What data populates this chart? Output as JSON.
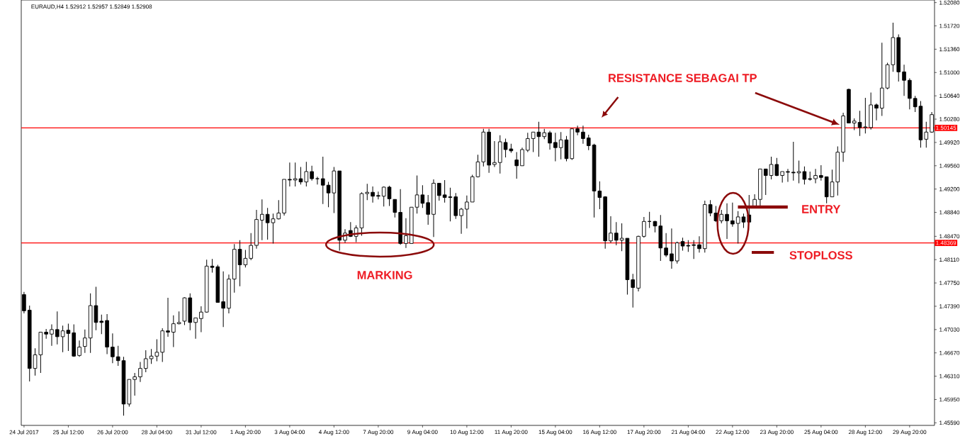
{
  "chart_data": {
    "type": "candlestick",
    "title": "EURAUD,H4 1.52912 1.52957 1.52849 1.52908",
    "annotations": [
      "RESISTANCE SEBAGAI TP",
      "MARKING",
      "ENTRY",
      "STOPLOSS"
    ],
    "categories": [
      "24 Jul 2017",
      null,
      null,
      null,
      null,
      null,
      null,
      null,
      "25 Jul 12:00",
      null,
      null,
      null,
      null,
      null,
      null,
      null,
      "26 Jul 20:00",
      null,
      null,
      null,
      null,
      null,
      null,
      null,
      "28 Jul 04:00",
      null,
      null,
      null,
      null,
      null,
      null,
      null,
      "31 Jul 12:00",
      null,
      null,
      null,
      null,
      null,
      null,
      null,
      "1 Aug 20:00",
      null,
      null,
      null,
      null,
      null,
      null,
      null,
      "3 Aug 04:00",
      null,
      null,
      null,
      null,
      null,
      null,
      null,
      "4 Aug 12:00",
      null,
      null,
      null,
      null,
      null,
      null,
      null,
      "7 Aug 20:00",
      null,
      null,
      null,
      null,
      null,
      null,
      null,
      "9 Aug 04:00",
      null,
      null,
      null,
      null,
      null,
      null,
      null,
      "10 Aug 12:00",
      null,
      null,
      null,
      null,
      null,
      null,
      null,
      "11 Aug 20:00",
      null,
      null,
      null,
      null,
      null,
      null,
      null,
      "15 Aug 04:00",
      null,
      null,
      null,
      null,
      null,
      null,
      null,
      "16 Aug 12:00",
      null,
      null,
      null,
      null,
      null,
      null,
      null,
      "17 Aug 20:00",
      null,
      null,
      null,
      null,
      null,
      null,
      null,
      "21 Aug 04:00",
      null,
      null,
      null,
      null,
      null,
      null,
      null,
      "22 Aug 12:00",
      null,
      null,
      null,
      null,
      null,
      null,
      null,
      "23 Aug 20:00",
      null,
      null,
      null,
      null,
      null,
      null,
      null,
      "25 Aug 04:00",
      null,
      null,
      null,
      null,
      null,
      null,
      null,
      "28 Aug 12:00",
      null,
      null,
      null,
      null,
      null,
      null,
      null,
      "29 Aug 20:00",
      null,
      null,
      null,
      null
    ],
    "ohlc": [
      [
        1.4757,
        1.4761,
        1.4728,
        1.4732
      ],
      [
        1.4733,
        1.474,
        1.4623,
        1.4643
      ],
      [
        1.4643,
        1.4674,
        1.4632,
        1.4664
      ],
      [
        1.4664,
        1.4699,
        1.4636,
        1.4699
      ],
      [
        1.4699,
        1.4704,
        1.4689,
        1.4696
      ],
      [
        1.4696,
        1.4711,
        1.4678,
        1.4703
      ],
      [
        1.4703,
        1.4731,
        1.468,
        1.4692
      ],
      [
        1.4692,
        1.4709,
        1.4668,
        1.4701
      ],
      [
        1.4702,
        1.4712,
        1.467,
        1.4697
      ],
      [
        1.4698,
        1.4711,
        1.4661,
        1.4662
      ],
      [
        1.4663,
        1.4686,
        1.4661,
        1.4676
      ],
      [
        1.4677,
        1.4703,
        1.4667,
        1.469
      ],
      [
        1.469,
        1.4759,
        1.4667,
        1.474
      ],
      [
        1.474,
        1.4769,
        1.4702,
        1.4714
      ],
      [
        1.4716,
        1.4726,
        1.4696,
        1.4714
      ],
      [
        1.4717,
        1.4727,
        1.4665,
        1.4676
      ],
      [
        1.4676,
        1.4697,
        1.4651,
        1.4661
      ],
      [
        1.4661,
        1.4678,
        1.4647,
        1.4655
      ],
      [
        1.4655,
        1.4661,
        1.457,
        1.4588
      ],
      [
        1.4588,
        1.4626,
        1.4584,
        1.4626
      ],
      [
        1.4626,
        1.4636,
        1.4601,
        1.463
      ],
      [
        1.463,
        1.4653,
        1.4622,
        1.4643
      ],
      [
        1.4643,
        1.4671,
        1.4637,
        1.4658
      ],
      [
        1.4658,
        1.4673,
        1.465,
        1.4662
      ],
      [
        1.4662,
        1.4688,
        1.4654,
        1.4668
      ],
      [
        1.4668,
        1.4705,
        1.4653,
        1.4701
      ],
      [
        1.4701,
        1.4752,
        1.4692,
        1.4699
      ],
      [
        1.4699,
        1.4725,
        1.4676,
        1.4712
      ],
      [
        1.4712,
        1.4731,
        1.4711,
        1.4714
      ],
      [
        1.4716,
        1.4753,
        1.471,
        1.4752
      ],
      [
        1.4752,
        1.4759,
        1.4702,
        1.4714
      ],
      [
        1.4714,
        1.4721,
        1.4689,
        1.4721
      ],
      [
        1.472,
        1.4739,
        1.4699,
        1.473
      ],
      [
        1.473,
        1.4811,
        1.4729,
        1.4801
      ],
      [
        1.4801,
        1.4812,
        1.4791,
        1.4799
      ],
      [
        1.48,
        1.4803,
        1.4745,
        1.4745
      ],
      [
        1.4746,
        1.4793,
        1.4707,
        1.4736
      ],
      [
        1.4736,
        1.4788,
        1.4728,
        1.4781
      ],
      [
        1.4781,
        1.4835,
        1.476,
        1.4827
      ],
      [
        1.4827,
        1.4841,
        1.477,
        1.4803
      ],
      [
        1.4803,
        1.4826,
        1.4799,
        1.4813
      ],
      [
        1.4813,
        1.4852,
        1.481,
        1.4833
      ],
      [
        1.4833,
        1.4888,
        1.4828,
        1.4873
      ],
      [
        1.4872,
        1.4904,
        1.4841,
        1.4881
      ],
      [
        1.4881,
        1.4891,
        1.4842,
        1.4868
      ],
      [
        1.4868,
        1.4882,
        1.4836,
        1.4874
      ],
      [
        1.4874,
        1.4903,
        1.4873,
        1.4883
      ],
      [
        1.4883,
        1.4935,
        1.4879,
        1.4935
      ],
      [
        1.4935,
        1.4961,
        1.4924,
        1.4934
      ],
      [
        1.4934,
        1.4961,
        1.4924,
        1.4936
      ],
      [
        1.4936,
        1.4954,
        1.4927,
        1.4931
      ],
      [
        1.4931,
        1.4962,
        1.4924,
        1.4947
      ],
      [
        1.4947,
        1.4956,
        1.4933,
        1.4936
      ],
      [
        1.4936,
        1.4939,
        1.4927,
        1.4936
      ],
      [
        1.4936,
        1.497,
        1.4897,
        1.4926
      ],
      [
        1.4926,
        1.4931,
        1.4892,
        1.4914
      ],
      [
        1.4914,
        1.4954,
        1.4883,
        1.4948
      ],
      [
        1.4948,
        1.4948,
        1.4825,
        1.4841
      ],
      [
        1.4841,
        1.4858,
        1.4837,
        1.4852
      ],
      [
        1.4856,
        1.4869,
        1.4846,
        1.4847
      ],
      [
        1.4847,
        1.4864,
        1.4838,
        1.486
      ],
      [
        1.486,
        1.4915,
        1.4848,
        1.4913
      ],
      [
        1.4913,
        1.4928,
        1.4903,
        1.4915
      ],
      [
        1.4915,
        1.4924,
        1.4899,
        1.4909
      ],
      [
        1.491,
        1.4916,
        1.4904,
        1.4909
      ],
      [
        1.4909,
        1.4924,
        1.4893,
        1.4923
      ],
      [
        1.4923,
        1.4925,
        1.4894,
        1.4905
      ],
      [
        1.4904,
        1.4904,
        1.4876,
        1.4884
      ],
      [
        1.4884,
        1.492,
        1.4834,
        1.4836
      ],
      [
        1.4836,
        1.4875,
        1.4829,
        1.4848
      ],
      [
        1.4836,
        1.4892,
        1.4836,
        1.4892
      ],
      [
        1.4892,
        1.4941,
        1.4882,
        1.4911
      ],
      [
        1.4911,
        1.4926,
        1.4891,
        1.4898
      ],
      [
        1.4899,
        1.4911,
        1.4865,
        1.4881
      ],
      [
        1.4881,
        1.4935,
        1.4846,
        1.4929
      ],
      [
        1.4929,
        1.4929,
        1.4902,
        1.491
      ],
      [
        1.4911,
        1.4934,
        1.4899,
        1.4907
      ],
      [
        1.4908,
        1.4922,
        1.487,
        1.4907
      ],
      [
        1.4908,
        1.4914,
        1.4874,
        1.4879
      ],
      [
        1.4879,
        1.4891,
        1.4851,
        1.4889
      ],
      [
        1.4889,
        1.491,
        1.4859,
        1.49
      ],
      [
        1.49,
        1.4942,
        1.49,
        1.4939
      ],
      [
        1.4939,
        1.4973,
        1.4938,
        1.4962
      ],
      [
        1.4962,
        1.5013,
        1.4955,
        1.5008
      ],
      [
        1.5008,
        1.5013,
        1.4945,
        1.4957
      ],
      [
        1.4958,
        1.4994,
        1.4954,
        1.4961
      ],
      [
        1.4961,
        1.5003,
        1.4944,
        1.4993
      ],
      [
        1.4992,
        1.4998,
        1.4969,
        1.4981
      ],
      [
        1.4982,
        1.499,
        1.4976,
        1.4979
      ],
      [
        1.4965,
        1.4977,
        1.4936,
        1.4956
      ],
      [
        1.4956,
        1.4984,
        1.4956,
        1.4981
      ],
      [
        1.498,
        1.5007,
        1.4977,
        1.4998
      ],
      [
        1.4998,
        1.5008,
        1.4977,
        1.5008
      ],
      [
        1.5008,
        1.5024,
        1.497,
        1.5001
      ],
      [
        1.5001,
        1.5013,
        1.4997,
        1.5007
      ],
      [
        1.5007,
        1.501,
        1.4981,
        1.4991
      ],
      [
        1.4992,
        1.5007,
        1.4963,
        1.4984
      ],
      [
        1.4984,
        1.5008,
        1.4966,
        1.4996
      ],
      [
        1.4996,
        1.5002,
        1.4963,
        1.4967
      ],
      [
        1.4967,
        1.5013,
        1.4965,
        1.5013
      ],
      [
        1.5013,
        1.5018,
        1.5003,
        1.5008
      ],
      [
        1.5008,
        1.5018,
        1.499,
        1.4998
      ],
      [
        1.4999,
        1.5004,
        1.498,
        1.4987
      ],
      [
        1.4988,
        1.499,
        1.4876,
        1.4917
      ],
      [
        1.4917,
        1.4932,
        1.4889,
        1.4907
      ],
      [
        1.4908,
        1.4909,
        1.4828,
        1.484
      ],
      [
        1.484,
        1.4878,
        1.4837,
        1.4852
      ],
      [
        1.4852,
        1.4869,
        1.4833,
        1.4841
      ],
      [
        1.4841,
        1.4867,
        1.4824,
        1.4844
      ],
      [
        1.4844,
        1.4844,
        1.4757,
        1.478
      ],
      [
        1.478,
        1.4789,
        1.4737,
        1.4768
      ],
      [
        1.4767,
        1.4848,
        1.4762,
        1.4847
      ],
      [
        1.4847,
        1.4877,
        1.4845,
        1.487
      ],
      [
        1.487,
        1.4885,
        1.486,
        1.487
      ],
      [
        1.487,
        1.4871,
        1.4853,
        1.4863
      ],
      [
        1.4863,
        1.488,
        1.4809,
        1.4829
      ],
      [
        1.4829,
        1.4852,
        1.4815,
        1.4818
      ],
      [
        1.482,
        1.4859,
        1.4797,
        1.4809
      ],
      [
        1.4809,
        1.4839,
        1.4805,
        1.4837
      ],
      [
        1.4839,
        1.4845,
        1.4825,
        1.4832
      ],
      [
        1.4833,
        1.4841,
        1.4823,
        1.4832
      ],
      [
        1.4834,
        1.4841,
        1.4812,
        1.4833
      ],
      [
        1.4834,
        1.4847,
        1.4822,
        1.4828
      ],
      [
        1.4828,
        1.4902,
        1.4822,
        1.4896
      ],
      [
        1.4896,
        1.4903,
        1.4878,
        1.4883
      ],
      [
        1.4883,
        1.4894,
        1.4869,
        1.4871
      ],
      [
        1.4871,
        1.4888,
        1.4867,
        1.4881
      ],
      [
        1.4881,
        1.4898,
        1.4843,
        1.4871
      ],
      [
        1.4871,
        1.4899,
        1.4862,
        1.4866
      ],
      [
        1.4867,
        1.4886,
        1.4836,
        1.4877
      ],
      [
        1.4877,
        1.4882,
        1.486,
        1.4869
      ],
      [
        1.488,
        1.4911,
        1.4869,
        1.4869
      ],
      [
        1.4893,
        1.4912,
        1.4891,
        1.4904
      ],
      [
        1.4904,
        1.4951,
        1.4894,
        1.4951
      ],
      [
        1.4951,
        1.4951,
        1.4911,
        1.4941
      ],
      [
        1.4941,
        1.497,
        1.4935,
        1.4958
      ],
      [
        1.4958,
        1.4968,
        1.494,
        1.4941
      ],
      [
        1.4941,
        1.4947,
        1.493,
        1.4947
      ],
      [
        1.4947,
        1.4951,
        1.4931,
        1.4946
      ],
      [
        1.4946,
        1.4993,
        1.4933,
        1.4945
      ],
      [
        1.4945,
        1.4964,
        1.4929,
        1.4947
      ],
      [
        1.4947,
        1.4955,
        1.4927,
        1.4935
      ],
      [
        1.4936,
        1.4947,
        1.4933,
        1.4935
      ],
      [
        1.4936,
        1.4951,
        1.4929,
        1.4941
      ],
      [
        1.4941,
        1.4957,
        1.4933,
        1.4938
      ],
      [
        1.4939,
        1.4939,
        1.4898,
        1.4908
      ],
      [
        1.4908,
        1.495,
        1.4908,
        1.4931
      ],
      [
        1.4931,
        1.4986,
        1.491,
        1.4977
      ],
      [
        1.4977,
        1.5038,
        1.4962,
        1.5033
      ],
      [
        1.5074,
        1.5075,
        1.5022,
        1.5022
      ],
      [
        1.5022,
        1.5029,
        1.5011,
        1.5025
      ],
      [
        1.5023,
        1.5041,
        1.5002,
        1.5015
      ],
      [
        1.5015,
        1.5061,
        1.5006,
        1.5016
      ],
      [
        1.5015,
        1.5069,
        1.5012,
        1.505
      ],
      [
        1.505,
        1.5052,
        1.5026,
        1.5045
      ],
      [
        1.5045,
        1.5146,
        1.5033,
        1.5076
      ],
      [
        1.5076,
        1.5115,
        1.5074,
        1.5112
      ],
      [
        1.5112,
        1.5177,
        1.5101,
        1.5154
      ],
      [
        1.5154,
        1.5159,
        1.5086,
        1.5101
      ],
      [
        1.5101,
        1.5112,
        1.5064,
        1.5088
      ],
      [
        1.5088,
        1.5091,
        1.5043,
        1.506
      ],
      [
        1.506,
        1.5064,
        1.5039,
        1.5047
      ],
      [
        1.5048,
        1.5056,
        1.4984,
        1.4996
      ],
      [
        1.4997,
        1.5024,
        1.4984,
        1.5008
      ],
      [
        1.5008,
        1.5039,
        1.5007,
        1.5035
      ]
    ],
    "ylim": [
      1.4555,
      1.5212
    ],
    "yticks": [
      {
        "value": 1.4559,
        "label": "1.45590"
      },
      {
        "value": 1.4595,
        "label": "1.45950"
      },
      {
        "value": 1.4631,
        "label": "1.46310"
      },
      {
        "value": 1.4667,
        "label": "1.46670"
      },
      {
        "value": 1.4703,
        "label": "1.47030"
      },
      {
        "value": 1.4739,
        "label": "1.47390"
      },
      {
        "value": 1.4775,
        "label": "1.47750"
      },
      {
        "value": 1.4811,
        "label": "1.48110"
      },
      {
        "value": 1.4847,
        "label": "1.48470"
      },
      {
        "value": 1.4884,
        "label": "1.48840"
      },
      {
        "value": 1.492,
        "label": "1.49200"
      },
      {
        "value": 1.4956,
        "label": "1.49560"
      },
      {
        "value": 1.4992,
        "label": "1.49920"
      },
      {
        "value": 1.5028,
        "label": "1.50280"
      },
      {
        "value": 1.5064,
        "label": "1.50640"
      },
      {
        "value": 1.51,
        "label": "1.51000"
      },
      {
        "value": 1.5136,
        "label": "1.51360"
      },
      {
        "value": 1.5172,
        "label": "1.51720"
      },
      {
        "value": 1.5208,
        "label": "1.52080"
      }
    ],
    "ref_lines": [
      {
        "axis": "y",
        "value": 1.50145,
        "label": "1.50145",
        "color": "#ff0000"
      },
      {
        "axis": "y",
        "value": 1.48369,
        "label": "1.48369",
        "color": "#ff0000"
      }
    ]
  }
}
